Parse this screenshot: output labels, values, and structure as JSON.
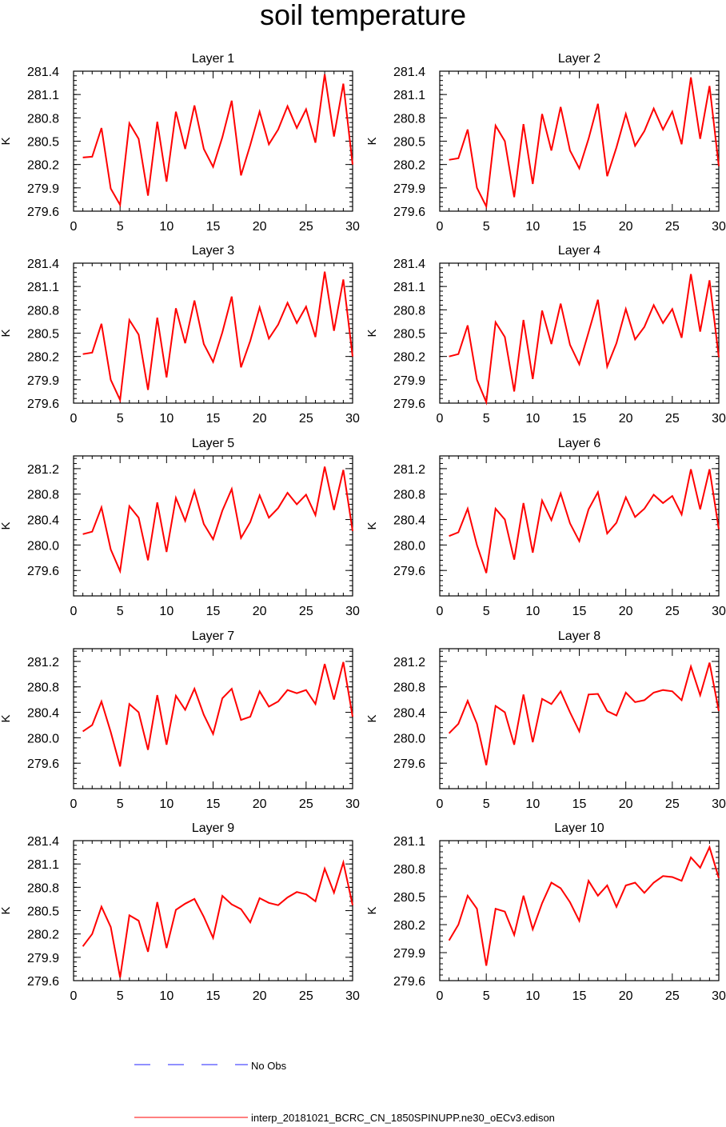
{
  "page": {
    "title": "soil temperature"
  },
  "legend": {
    "items": [
      {
        "label": "No Obs",
        "color": "#2222ff",
        "style": "dashed"
      },
      {
        "label": "interp_20181021_BCRC_CN_1850SPINUPP.ne30_oECv3.edison",
        "color": "#ff0000",
        "style": "solid"
      }
    ]
  },
  "chart_data": [
    {
      "type": "line",
      "title": "Layer 1",
      "xlabel": "",
      "ylabel": "K",
      "xlim": [
        0,
        30
      ],
      "ylim": [
        279.6,
        281.4
      ],
      "xticks": [
        0,
        5,
        10,
        15,
        20,
        25,
        30
      ],
      "yticks": [
        "279.6",
        "279.9",
        "280.2",
        "280.5",
        "280.8",
        "281.1",
        "281.4"
      ],
      "x": [
        1,
        2,
        3,
        4,
        5,
        6,
        7,
        8,
        9,
        10,
        11,
        12,
        13,
        14,
        15,
        16,
        17,
        18,
        19,
        20,
        21,
        22,
        23,
        24,
        25,
        26,
        27,
        28,
        29,
        30
      ],
      "series": [
        {
          "name": "interp_20181021_BCRC_CN_1850SPINUPP.ne30_oECv3.edison",
          "color": "#ff0000",
          "values": [
            280.29,
            280.3,
            280.67,
            279.89,
            279.68,
            280.73,
            280.53,
            279.8,
            280.75,
            279.98,
            280.88,
            280.4,
            280.96,
            280.4,
            280.17,
            280.55,
            281.02,
            280.06,
            280.45,
            280.88,
            280.46,
            280.65,
            280.95,
            280.67,
            280.91,
            280.48,
            281.36,
            280.56,
            281.24,
            280.2
          ]
        }
      ]
    },
    {
      "type": "line",
      "title": "Layer 2",
      "xlabel": "",
      "ylabel": "K",
      "xlim": [
        0,
        30
      ],
      "ylim": [
        279.6,
        281.4
      ],
      "xticks": [
        0,
        5,
        10,
        15,
        20,
        25,
        30
      ],
      "yticks": [
        "279.6",
        "279.9",
        "280.2",
        "280.5",
        "280.8",
        "281.1",
        "281.4"
      ],
      "x": [
        1,
        2,
        3,
        4,
        5,
        6,
        7,
        8,
        9,
        10,
        11,
        12,
        13,
        14,
        15,
        16,
        17,
        18,
        19,
        20,
        21,
        22,
        23,
        24,
        25,
        26,
        27,
        28,
        29,
        30
      ],
      "series": [
        {
          "name": "interp_20181021_BCRC_CN_1850SPINUPP.ne30_oECv3.edison",
          "color": "#ff0000",
          "values": [
            280.26,
            280.28,
            280.65,
            279.9,
            279.66,
            280.7,
            280.5,
            279.78,
            280.72,
            279.95,
            280.85,
            280.38,
            280.94,
            280.38,
            280.15,
            280.53,
            280.98,
            280.05,
            280.42,
            280.85,
            280.44,
            280.63,
            280.92,
            280.65,
            280.88,
            280.46,
            281.32,
            280.53,
            281.21,
            280.18
          ]
        }
      ]
    },
    {
      "type": "line",
      "title": "Layer 3",
      "xlabel": "",
      "ylabel": "K",
      "xlim": [
        0,
        30
      ],
      "ylim": [
        279.6,
        281.4
      ],
      "xticks": [
        0,
        5,
        10,
        15,
        20,
        25,
        30
      ],
      "yticks": [
        "279.6",
        "279.9",
        "280.2",
        "280.5",
        "280.8",
        "281.1",
        "281.4"
      ],
      "x": [
        1,
        2,
        3,
        4,
        5,
        6,
        7,
        8,
        9,
        10,
        11,
        12,
        13,
        14,
        15,
        16,
        17,
        18,
        19,
        20,
        21,
        22,
        23,
        24,
        25,
        26,
        27,
        28,
        29,
        30
      ],
      "series": [
        {
          "name": "interp_20181021_BCRC_CN_1850SPINUPP.ne30_oECv3.edison",
          "color": "#ff0000",
          "values": [
            280.23,
            280.25,
            280.62,
            279.9,
            279.64,
            280.67,
            280.48,
            279.77,
            280.7,
            279.93,
            280.82,
            280.37,
            280.92,
            280.36,
            280.13,
            280.51,
            280.97,
            280.06,
            280.4,
            280.83,
            280.43,
            280.61,
            280.89,
            280.63,
            280.84,
            280.45,
            281.29,
            280.53,
            281.19,
            280.2
          ]
        }
      ]
    },
    {
      "type": "line",
      "title": "Layer 4",
      "xlabel": "",
      "ylabel": "K",
      "xlim": [
        0,
        30
      ],
      "ylim": [
        279.6,
        281.4
      ],
      "xticks": [
        0,
        5,
        10,
        15,
        20,
        25,
        30
      ],
      "yticks": [
        "279.6",
        "279.9",
        "280.2",
        "280.5",
        "280.8",
        "281.1",
        "281.4"
      ],
      "x": [
        1,
        2,
        3,
        4,
        5,
        6,
        7,
        8,
        9,
        10,
        11,
        12,
        13,
        14,
        15,
        16,
        17,
        18,
        19,
        20,
        21,
        22,
        23,
        24,
        25,
        26,
        27,
        28,
        29,
        30
      ],
      "series": [
        {
          "name": "interp_20181021_BCRC_CN_1850SPINUPP.ne30_oECv3.edison",
          "color": "#ff0000",
          "values": [
            280.2,
            280.23,
            280.6,
            279.9,
            279.61,
            280.64,
            280.45,
            279.75,
            280.67,
            279.91,
            280.79,
            280.36,
            280.88,
            280.35,
            280.1,
            280.51,
            280.93,
            280.07,
            280.37,
            280.81,
            280.42,
            280.58,
            280.86,
            280.63,
            280.81,
            280.44,
            281.26,
            280.52,
            281.18,
            280.19
          ]
        }
      ]
    },
    {
      "type": "line",
      "title": "Layer 5",
      "xlabel": "",
      "ylabel": "K",
      "xlim": [
        0,
        30
      ],
      "ylim": [
        279.2,
        281.4
      ],
      "xticks": [
        0,
        5,
        10,
        15,
        20,
        25,
        30
      ],
      "yticks": [
        "279.6",
        "280.0",
        "280.4",
        "280.8",
        "281.2"
      ],
      "x": [
        1,
        2,
        3,
        4,
        5,
        6,
        7,
        8,
        9,
        10,
        11,
        12,
        13,
        14,
        15,
        16,
        17,
        18,
        19,
        20,
        21,
        22,
        23,
        24,
        25,
        26,
        27,
        28,
        29,
        30
      ],
      "series": [
        {
          "name": "interp_20181021_BCRC_CN_1850SPINUPP.ne30_oECv3.edison",
          "color": "#ff0000",
          "values": [
            280.17,
            280.21,
            280.59,
            279.93,
            279.59,
            280.61,
            280.43,
            279.76,
            280.67,
            279.89,
            280.74,
            280.38,
            280.85,
            280.33,
            280.09,
            280.54,
            280.88,
            280.11,
            280.36,
            280.78,
            280.43,
            280.58,
            280.82,
            280.64,
            280.79,
            280.47,
            281.23,
            280.55,
            281.18,
            280.22
          ]
        }
      ]
    },
    {
      "type": "line",
      "title": "Layer 6",
      "xlabel": "",
      "ylabel": "K",
      "xlim": [
        0,
        30
      ],
      "ylim": [
        279.2,
        281.4
      ],
      "xticks": [
        0,
        5,
        10,
        15,
        20,
        25,
        30
      ],
      "yticks": [
        "279.6",
        "280.0",
        "280.4",
        "280.8",
        "281.2"
      ],
      "x": [
        1,
        2,
        3,
        4,
        5,
        6,
        7,
        8,
        9,
        10,
        11,
        12,
        13,
        14,
        15,
        16,
        17,
        18,
        19,
        20,
        21,
        22,
        23,
        24,
        25,
        26,
        27,
        28,
        29,
        30
      ],
      "series": [
        {
          "name": "interp_20181021_BCRC_CN_1850SPINUPP.ne30_oECv3.edison",
          "color": "#ff0000",
          "values": [
            280.14,
            280.2,
            280.57,
            280.0,
            279.56,
            280.57,
            280.4,
            279.77,
            280.66,
            279.88,
            280.7,
            280.39,
            280.81,
            280.34,
            280.06,
            280.56,
            280.83,
            280.18,
            280.35,
            280.75,
            280.44,
            280.57,
            280.79,
            280.66,
            280.77,
            280.48,
            281.19,
            280.56,
            281.19,
            280.25
          ]
        }
      ]
    },
    {
      "type": "line",
      "title": "Layer 7",
      "xlabel": "",
      "ylabel": "K",
      "xlim": [
        0,
        30
      ],
      "ylim": [
        279.2,
        281.4
      ],
      "xticks": [
        0,
        5,
        10,
        15,
        20,
        25,
        30
      ],
      "yticks": [
        "279.6",
        "280.0",
        "280.4",
        "280.8",
        "281.2"
      ],
      "x": [
        1,
        2,
        3,
        4,
        5,
        6,
        7,
        8,
        9,
        10,
        11,
        12,
        13,
        14,
        15,
        16,
        17,
        18,
        19,
        20,
        21,
        22,
        23,
        24,
        25,
        26,
        27,
        28,
        29,
        30
      ],
      "series": [
        {
          "name": "interp_20181021_BCRC_CN_1850SPINUPP.ne30_oECv3.edison",
          "color": "#ff0000",
          "values": [
            280.1,
            280.2,
            280.57,
            280.09,
            279.55,
            280.53,
            280.4,
            279.81,
            280.67,
            279.89,
            280.66,
            280.44,
            280.77,
            280.36,
            280.06,
            280.62,
            280.77,
            280.28,
            280.33,
            280.73,
            280.49,
            280.57,
            280.75,
            280.7,
            280.75,
            280.53,
            281.16,
            280.6,
            281.19,
            280.33
          ]
        }
      ]
    },
    {
      "type": "line",
      "title": "Layer 8",
      "xlabel": "",
      "ylabel": "K",
      "xlim": [
        0,
        30
      ],
      "ylim": [
        279.2,
        281.4
      ],
      "xticks": [
        0,
        5,
        10,
        15,
        20,
        25,
        30
      ],
      "yticks": [
        "279.6",
        "280.0",
        "280.4",
        "280.8",
        "281.2"
      ],
      "x": [
        1,
        2,
        3,
        4,
        5,
        6,
        7,
        8,
        9,
        10,
        11,
        12,
        13,
        14,
        15,
        16,
        17,
        18,
        19,
        20,
        21,
        22,
        23,
        24,
        25,
        26,
        27,
        28,
        29,
        30
      ],
      "series": [
        {
          "name": "interp_20181021_BCRC_CN_1850SPINUPP.ne30_oECv3.edison",
          "color": "#ff0000",
          "values": [
            280.07,
            280.22,
            280.58,
            280.22,
            279.57,
            280.5,
            280.4,
            279.89,
            280.68,
            279.93,
            280.61,
            280.53,
            280.73,
            280.4,
            280.1,
            280.68,
            280.69,
            280.42,
            280.35,
            280.71,
            280.56,
            280.59,
            280.71,
            280.75,
            280.73,
            280.59,
            281.12,
            280.67,
            281.18,
            280.42
          ]
        }
      ]
    },
    {
      "type": "line",
      "title": "Layer 9",
      "xlabel": "",
      "ylabel": "K",
      "xlim": [
        0,
        30
      ],
      "ylim": [
        279.6,
        281.4
      ],
      "xticks": [
        0,
        5,
        10,
        15,
        20,
        25,
        30
      ],
      "yticks": [
        "279.6",
        "279.9",
        "280.2",
        "280.5",
        "280.8",
        "281.1",
        "281.4"
      ],
      "x": [
        1,
        2,
        3,
        4,
        5,
        6,
        7,
        8,
        9,
        10,
        11,
        12,
        13,
        14,
        15,
        16,
        17,
        18,
        19,
        20,
        21,
        22,
        23,
        24,
        25,
        26,
        27,
        28,
        29,
        30
      ],
      "series": [
        {
          "name": "interp_20181021_BCRC_CN_1850SPINUPP.ne30_oECv3.edison",
          "color": "#ff0000",
          "values": [
            280.04,
            280.2,
            280.55,
            280.29,
            279.64,
            280.44,
            280.37,
            279.97,
            280.61,
            280.02,
            280.51,
            280.59,
            280.65,
            280.42,
            280.15,
            280.69,
            280.58,
            280.52,
            280.35,
            280.66,
            280.6,
            280.57,
            280.67,
            280.74,
            280.71,
            280.62,
            281.04,
            280.73,
            281.12,
            280.57
          ]
        }
      ]
    },
    {
      "type": "line",
      "title": "Layer 10",
      "xlabel": "",
      "ylabel": "K",
      "xlim": [
        0,
        30
      ],
      "ylim": [
        279.6,
        281.1
      ],
      "xticks": [
        0,
        5,
        10,
        15,
        20,
        25,
        30
      ],
      "yticks": [
        "279.6",
        "279.9",
        "280.2",
        "280.5",
        "280.8",
        "281.1"
      ],
      "x": [
        1,
        2,
        3,
        4,
        5,
        6,
        7,
        8,
        9,
        10,
        11,
        12,
        13,
        14,
        15,
        16,
        17,
        18,
        19,
        20,
        21,
        22,
        23,
        24,
        25,
        26,
        27,
        28,
        29,
        30
      ],
      "series": [
        {
          "name": "interp_20181021_BCRC_CN_1850SPINUPP.ne30_oECv3.edison",
          "color": "#ff0000",
          "values": [
            280.03,
            280.2,
            280.51,
            280.37,
            279.76,
            280.37,
            280.34,
            280.09,
            280.51,
            280.15,
            280.43,
            280.65,
            280.59,
            280.44,
            280.24,
            280.67,
            280.51,
            280.62,
            280.39,
            280.62,
            280.65,
            280.54,
            280.65,
            280.72,
            280.71,
            280.67,
            280.92,
            280.81,
            281.03,
            280.7
          ]
        }
      ]
    }
  ]
}
